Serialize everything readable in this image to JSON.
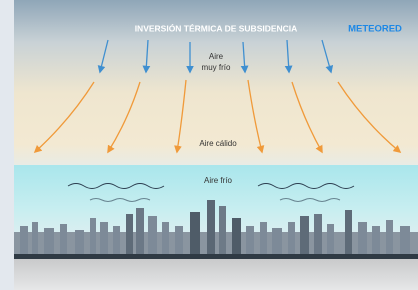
{
  "header": {
    "title": "INVERSIÓN TÉRMICA DE SUBSIDENCIA",
    "brand": "METEORED"
  },
  "labels": {
    "very_cold": {
      "line1": "Aire",
      "line2": "muy frío"
    },
    "warm": "Aire cálido",
    "cold": "Aire frío"
  }
}
